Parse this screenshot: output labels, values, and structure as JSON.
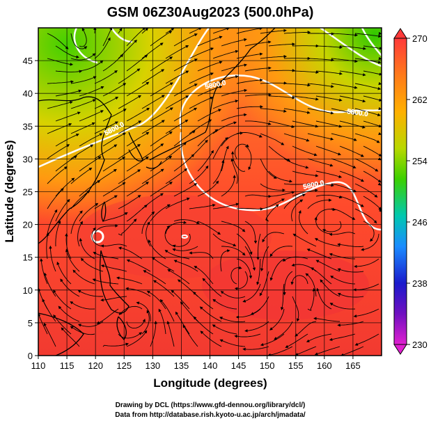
{
  "title": "GSM 06Z30Aug2023 (500.0hPa)",
  "axes": {
    "xlabel": "Longitude (degrees)",
    "ylabel": "Latitude  (degrees)",
    "x_ticks": [
      "110",
      "115",
      "120",
      "125",
      "130",
      "135",
      "140",
      "145",
      "150",
      "155",
      "160",
      "165"
    ],
    "y_ticks": [
      "0",
      "5",
      "10",
      "15",
      "20",
      "25",
      "30",
      "35",
      "40",
      "45"
    ]
  },
  "colorbar": {
    "ticks": [
      "270",
      "262",
      "254",
      "246",
      "238",
      "230"
    ],
    "colors": [
      "#ff4b3b",
      "#ff8e1a",
      "#e6d600",
      "#3bd400",
      "#00c8a0",
      "#1a7cff",
      "#1a1ad0",
      "#7a14c8",
      "#d31ad8"
    ]
  },
  "contour_labels": [
    "5800.0",
    "5800.0",
    "5800.0",
    "5800.0"
  ],
  "credits": {
    "line1": "Drawing by DCL (https://www.gfd-dennou.org/library/dcl/)",
    "line2": "Data from http://database.rish.kyoto-u.ac.jp/arch/jmadata/"
  }
}
